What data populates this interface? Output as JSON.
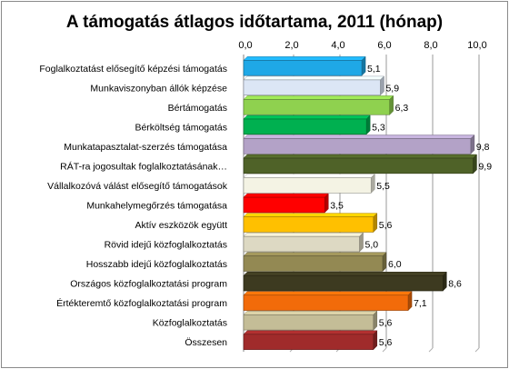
{
  "chart_data": {
    "type": "bar",
    "orientation": "horizontal",
    "title": "A támogatás átlagos időtartama,  2011 (hónap)",
    "xlim": [
      0,
      10
    ],
    "ticks": [
      "0,0",
      "2,0",
      "4,0",
      "6,0",
      "8,0",
      "10,0"
    ],
    "tick_values": [
      0,
      2,
      4,
      6,
      8,
      10
    ],
    "axis_position": "top",
    "grid": true,
    "categories": [
      "Foglalkoztatást elősegítő képzési támogatás",
      "Munkaviszonyban állók képzése",
      "Bértámogatás",
      "Bérköltség támogatás",
      "Munkatapasztalat-szerzés támogatása",
      "RÁT-ra jogosultak foglalkoztatásának…",
      "Vállalkozóvá válást elősegítő támogatások",
      "Munkahelymegőrzés támogatása",
      "Aktív eszközök együtt",
      "Rövid idejű közfoglalkoztatás",
      "Hosszabb idejű közfoglalkoztatás",
      "Országos közfoglalkoztatási program",
      "Értékteremtő közfoglalkoztatási program",
      "Közfoglalkoztatás",
      "Összesen"
    ],
    "values": [
      5.1,
      5.9,
      6.3,
      5.3,
      9.8,
      9.9,
      5.5,
      3.5,
      5.6,
      5.0,
      6.0,
      8.6,
      7.1,
      5.6,
      5.6
    ],
    "value_labels": [
      "5,1",
      "5,9",
      "6,3",
      "5,3",
      "9,8",
      "9,9",
      "5,5",
      "3,5",
      "5,6",
      "5,0",
      "6,0",
      "8,6",
      "7,1",
      "5,6",
      "5,6"
    ],
    "colors": [
      "#1fa8e6",
      "#dce6f5",
      "#8fd14f",
      "#00b050",
      "#b3a2c7",
      "#4f6228",
      "#f4f3e4",
      "#ff0000",
      "#ffc000",
      "#ddd9c3",
      "#938953",
      "#3d3a20",
      "#f26b0a",
      "#c4bd97",
      "#a02b2b"
    ]
  }
}
